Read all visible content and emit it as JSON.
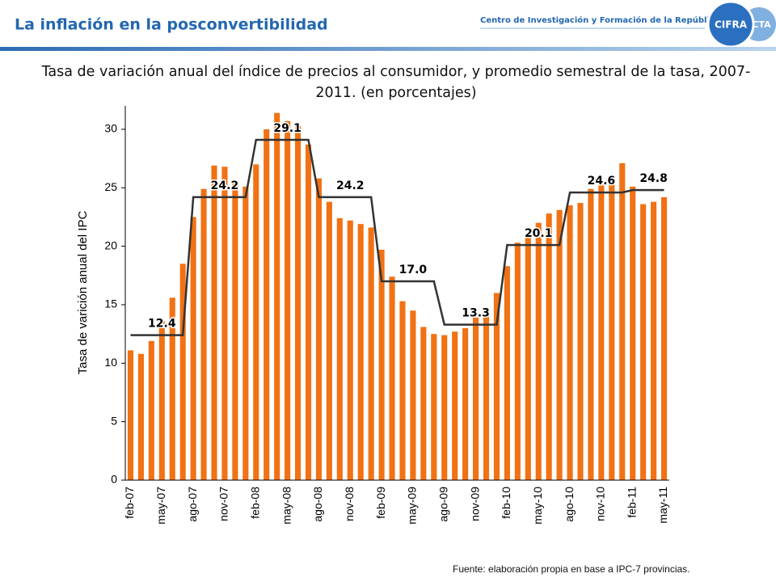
{
  "header": {
    "title": "La inflación en la posconvertibilidad",
    "organization": "Centro de Investigación y Formación de la República Argentina",
    "logo": [
      "CIFRA",
      "CTA"
    ]
  },
  "chart_data": {
    "type": "bar",
    "title": "Tasa de variación anual del índice de precios al consumidor, y promedio semestral de la tasa, 2007-2011. (en porcentajes)",
    "y_label": "Tasa de varición anual del IPC",
    "categories": [
      "feb-07",
      null,
      null,
      "may-07",
      null,
      null,
      "ago-07",
      null,
      null,
      "nov-07",
      null,
      null,
      "feb-08",
      null,
      null,
      "may-08",
      null,
      null,
      "ago-08",
      null,
      null,
      "nov-08",
      null,
      null,
      "feb-09",
      null,
      null,
      "may-09",
      null,
      null,
      "ago-09",
      null,
      null,
      "nov-09",
      null,
      null,
      "feb-10",
      null,
      null,
      "may-10",
      null,
      null,
      "ago-10",
      null,
      null,
      "nov-10",
      null,
      null,
      "feb-11",
      null,
      null,
      "may-11"
    ],
    "series": [
      {
        "type": "bar",
        "color": "#f07215",
        "values": [
          11.1,
          10.8,
          11.9,
          13.6,
          15.6,
          18.5,
          22.5,
          24.9,
          26.9,
          26.8,
          25.6,
          25.1,
          27.0,
          30.0,
          31.4,
          30.7,
          30.3,
          28.7,
          25.8,
          23.8,
          22.4,
          22.2,
          21.9,
          21.6,
          19.7,
          17.4,
          15.3,
          14.5,
          13.1,
          12.5,
          12.4,
          12.7,
          13.0,
          13.9,
          14.6,
          16.0,
          18.3,
          20.3,
          21.0,
          22.0,
          22.8,
          23.1,
          23.5,
          23.7,
          24.9,
          25.3,
          26.0,
          27.1,
          25.1,
          23.6,
          23.8,
          24.2
        ]
      },
      {
        "type": "line",
        "color": "#333333",
        "values": [
          12.4,
          12.4,
          12.4,
          12.4,
          12.4,
          12.4,
          24.2,
          24.2,
          24.2,
          24.2,
          24.2,
          24.2,
          29.1,
          29.1,
          29.1,
          29.1,
          29.1,
          29.1,
          24.2,
          24.2,
          24.2,
          24.2,
          24.2,
          24.2,
          17.0,
          17.0,
          17.0,
          17.0,
          17.0,
          17.0,
          13.3,
          13.3,
          13.3,
          13.3,
          13.3,
          13.3,
          20.1,
          20.1,
          20.1,
          20.1,
          20.1,
          20.1,
          24.6,
          24.6,
          24.6,
          24.6,
          24.6,
          24.6,
          24.8,
          24.8,
          24.8,
          24.8
        ],
        "value_labels": [
          null,
          null,
          null,
          "12.4",
          null,
          null,
          null,
          null,
          null,
          "24.2",
          null,
          null,
          null,
          null,
          null,
          "29.1",
          null,
          null,
          null,
          null,
          null,
          "24.2",
          null,
          null,
          null,
          null,
          null,
          "17.0",
          null,
          null,
          null,
          null,
          null,
          "13.3",
          null,
          null,
          null,
          null,
          null,
          "20.1",
          null,
          null,
          null,
          null,
          null,
          "24.6",
          null,
          null,
          null,
          null,
          "24.8",
          null
        ]
      }
    ],
    "ylim": [
      0,
      32
    ],
    "yticks": [
      0,
      5,
      10,
      15,
      20,
      25,
      30
    ],
    "grid": false
  },
  "source": "Fuente: elaboración propia en base a IPC-7 provincias."
}
